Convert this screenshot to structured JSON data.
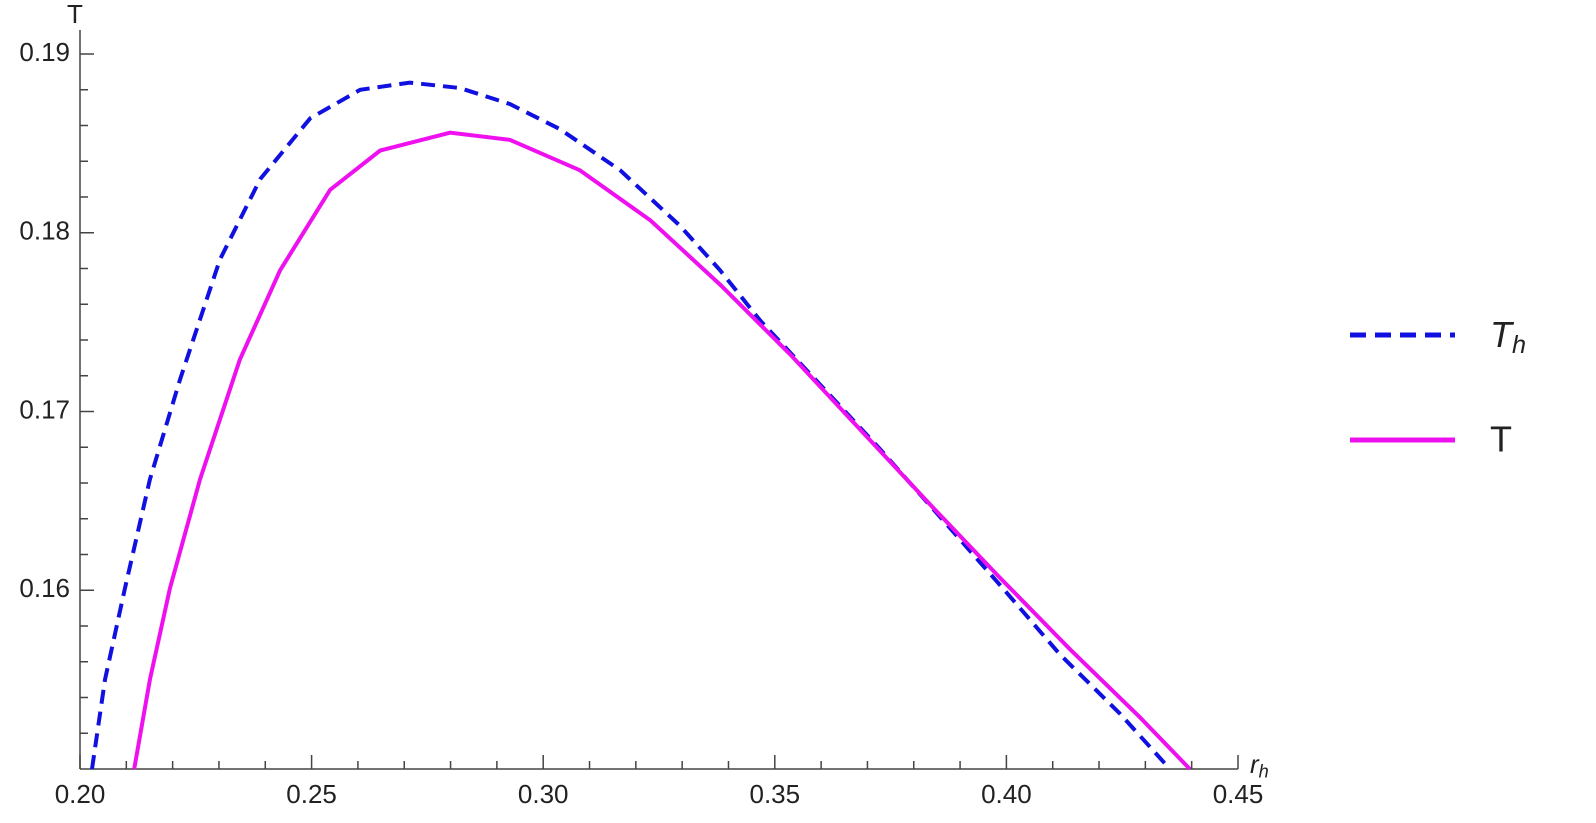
{
  "chart_data": {
    "type": "line",
    "x_label": "rh",
    "y_label": "T",
    "x": null,
    "series": [
      {
        "name": "Th",
        "color": "#1010e0",
        "dashed": true,
        "x": [
          0.2026,
          0.2054,
          0.2097,
          0.2151,
          0.2216,
          0.2302,
          0.2389,
          0.2497,
          0.2605,
          0.2712,
          0.282,
          0.2928,
          0.3036,
          0.3166,
          0.3295,
          0.3382,
          0.3468,
          0.3598,
          0.3727,
          0.3857,
          0.3986,
          0.4116,
          0.4245,
          0.4353
        ],
        "values": [
          0.15,
          0.155,
          0.1601,
          0.1662,
          0.1718,
          0.1785,
          0.183,
          0.1864,
          0.188,
          0.1884,
          0.1881,
          0.1872,
          0.1858,
          0.1835,
          0.1804,
          0.1779,
          0.1751,
          0.1715,
          0.1679,
          0.1641,
          0.1603,
          0.1564,
          0.1531,
          0.15
        ]
      },
      {
        "name": "T",
        "color": "#ee10ee",
        "dashed": false,
        "x": [
          0.2117,
          0.2151,
          0.2194,
          0.2259,
          0.2345,
          0.2432,
          0.254,
          0.2648,
          0.2799,
          0.2928,
          0.3079,
          0.3231,
          0.3382,
          0.3533,
          0.3684,
          0.3835,
          0.3986,
          0.4137,
          0.4288,
          0.4396
        ],
        "values": [
          0.15,
          0.155,
          0.1601,
          0.1662,
          0.1729,
          0.1779,
          0.1824,
          0.1846,
          0.1856,
          0.1852,
          0.1835,
          0.1807,
          0.1771,
          0.1732,
          0.169,
          0.1648,
          0.1607,
          0.1567,
          0.1529,
          0.15
        ]
      }
    ],
    "xlim": [
      0.2,
      0.45
    ],
    "xticks": [
      {
        "value": 0.2,
        "label": "0.20"
      },
      0.25,
      {
        "value": 0.3,
        "label": "0.30"
      },
      0.35,
      {
        "value": 0.4,
        "label": "0.40"
      },
      0.45
    ],
    "ylim": [
      0.15,
      0.19
    ],
    "yticks": [
      0.16,
      0.17,
      0.18,
      0.19
    ],
    "legend": "right"
  }
}
